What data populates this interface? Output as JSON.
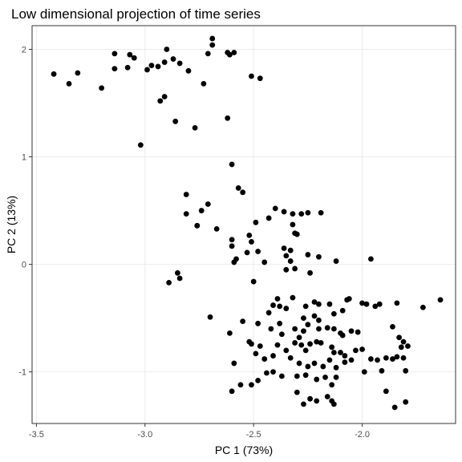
{
  "chart_data": {
    "type": "scatter",
    "title": "Low dimensional projection of time series",
    "xlabel": "PC 1 (73%)",
    "ylabel": "PC 2 (13%)",
    "xlim": [
      -3.52,
      -1.57
    ],
    "ylim": [
      -1.48,
      2.22
    ],
    "x_ticks": [
      -3.5,
      -3.0,
      -2.5,
      -2.0
    ],
    "x_tick_labels": [
      "-3.5",
      "-3.0",
      "-2.5",
      "-2.0"
    ],
    "y_ticks": [
      -1,
      0,
      1,
      2
    ],
    "y_tick_labels": [
      "-1",
      "0",
      "1",
      "2"
    ],
    "grid": true,
    "point_color": "#000000",
    "points": [
      [
        -3.42,
        1.77
      ],
      [
        -3.35,
        1.68
      ],
      [
        -3.31,
        1.78
      ],
      [
        -3.2,
        1.64
      ],
      [
        -3.14,
        1.96
      ],
      [
        -3.14,
        1.82
      ],
      [
        -3.08,
        1.83
      ],
      [
        -3.07,
        1.95
      ],
      [
        -3.05,
        1.92
      ],
      [
        -2.99,
        1.81
      ],
      [
        -2.97,
        1.85
      ],
      [
        -2.94,
        1.84
      ],
      [
        -2.91,
        1.88
      ],
      [
        -2.9,
        2.0
      ],
      [
        -2.87,
        1.91
      ],
      [
        -2.84,
        1.87
      ],
      [
        -2.8,
        1.8
      ],
      [
        -2.71,
        1.96
      ],
      [
        -2.69,
        2.1
      ],
      [
        -2.69,
        2.04
      ],
      [
        -2.62,
        1.97
      ],
      [
        -2.61,
        1.95
      ],
      [
        -2.59,
        1.97
      ],
      [
        -2.51,
        1.75
      ],
      [
        -2.47,
        1.73
      ],
      [
        -2.93,
        1.52
      ],
      [
        -2.91,
        1.56
      ],
      [
        -2.73,
        1.68
      ],
      [
        -2.62,
        1.36
      ],
      [
        -2.86,
        1.33
      ],
      [
        -2.77,
        1.27
      ],
      [
        -3.02,
        1.11
      ],
      [
        -2.6,
        0.93
      ],
      [
        -2.81,
        0.65
      ],
      [
        -2.71,
        0.56
      ],
      [
        -2.74,
        0.5
      ],
      [
        -2.57,
        0.71
      ],
      [
        -2.55,
        0.67
      ],
      [
        -2.81,
        0.47
      ],
      [
        -2.76,
        0.36
      ],
      [
        -2.76,
        0.36
      ],
      [
        -2.67,
        0.33
      ],
      [
        -2.6,
        0.23
      ],
      [
        -2.6,
        0.17
      ],
      [
        -2.58,
        0.05
      ],
      [
        -2.59,
        0.02
      ],
      [
        -2.49,
        0.39
      ],
      [
        -2.51,
        0.21
      ],
      [
        -2.52,
        0.27
      ],
      [
        -2.53,
        0.11
      ],
      [
        -2.43,
        0.43
      ],
      [
        -2.4,
        0.52
      ],
      [
        -2.36,
        0.49
      ],
      [
        -2.32,
        0.47
      ],
      [
        -2.32,
        0.37
      ],
      [
        -2.31,
        0.29
      ],
      [
        -2.3,
        0.28
      ],
      [
        -2.28,
        0.47
      ],
      [
        -2.25,
        0.48
      ],
      [
        -2.19,
        0.48
      ],
      [
        -2.36,
        0.15
      ],
      [
        -2.33,
        0.13
      ],
      [
        -2.35,
        0.08
      ],
      [
        -2.33,
        0.03
      ],
      [
        -2.25,
        0.09
      ],
      [
        -2.2,
        0.07
      ],
      [
        -2.12,
        0.03
      ],
      [
        -1.96,
        0.05
      ],
      [
        -2.48,
        0.12
      ],
      [
        -2.45,
        0.02
      ],
      [
        -2.35,
        -0.05
      ],
      [
        -2.31,
        -0.04
      ],
      [
        -2.24,
        -0.08
      ],
      [
        -2.85,
        -0.08
      ],
      [
        -2.89,
        -0.17
      ],
      [
        -2.84,
        -0.13
      ],
      [
        -2.5,
        -0.16
      ],
      [
        -2.39,
        -0.32
      ],
      [
        -2.41,
        -0.38
      ],
      [
        -2.38,
        -0.39
      ],
      [
        -2.43,
        -0.45
      ],
      [
        -2.35,
        -0.41
      ],
      [
        -2.32,
        -0.31
      ],
      [
        -2.26,
        -0.39
      ],
      [
        -2.22,
        -0.35
      ],
      [
        -2.2,
        -0.37
      ],
      [
        -2.15,
        -0.37
      ],
      [
        -2.13,
        -0.46
      ],
      [
        -2.09,
        -0.43
      ],
      [
        -2.07,
        -0.33
      ],
      [
        -2.06,
        -0.32
      ],
      [
        -2.0,
        -0.36
      ],
      [
        -1.98,
        -0.37
      ],
      [
        -1.94,
        -0.39
      ],
      [
        -1.92,
        -0.37
      ],
      [
        -1.84,
        -0.36
      ],
      [
        -1.72,
        -0.4
      ],
      [
        -1.64,
        -0.33
      ],
      [
        -2.7,
        -0.49
      ],
      [
        -2.55,
        -0.53
      ],
      [
        -2.48,
        -0.55
      ],
      [
        -2.42,
        -0.6
      ],
      [
        -2.38,
        -0.55
      ],
      [
        -2.31,
        -0.6
      ],
      [
        -2.27,
        -0.62
      ],
      [
        -2.25,
        -0.56
      ],
      [
        -2.27,
        -0.5
      ],
      [
        -2.22,
        -0.48
      ],
      [
        -2.2,
        -0.52
      ],
      [
        -2.2,
        -0.6
      ],
      [
        -2.16,
        -0.59
      ],
      [
        -2.13,
        -0.6
      ],
      [
        -2.1,
        -0.64
      ],
      [
        -2.09,
        -0.66
      ],
      [
        -2.05,
        -0.62
      ],
      [
        -2.02,
        -0.63
      ],
      [
        -2.61,
        -0.64
      ],
      [
        -2.52,
        -0.72
      ],
      [
        -2.51,
        -0.74
      ],
      [
        -2.47,
        -0.76
      ],
      [
        -2.39,
        -0.75
      ],
      [
        -2.37,
        -0.65
      ],
      [
        -2.31,
        -0.73
      ],
      [
        -2.29,
        -0.68
      ],
      [
        -2.28,
        -0.75
      ],
      [
        -2.26,
        -0.8
      ],
      [
        -2.24,
        -0.74
      ],
      [
        -2.21,
        -0.72
      ],
      [
        -2.19,
        -0.73
      ],
      [
        -2.14,
        -0.77
      ],
      [
        -2.13,
        -0.82
      ],
      [
        -2.1,
        -0.82
      ],
      [
        -2.08,
        -0.85
      ],
      [
        -2.05,
        -0.89
      ],
      [
        -2.03,
        -0.8
      ],
      [
        -2.0,
        -0.79
      ],
      [
        -1.96,
        -0.88
      ],
      [
        -1.93,
        -0.89
      ],
      [
        -1.89,
        -0.87
      ],
      [
        -1.86,
        -0.88
      ],
      [
        -1.84,
        -0.86
      ],
      [
        -1.81,
        -0.87
      ],
      [
        -1.86,
        -0.58
      ],
      [
        -1.83,
        -0.68
      ],
      [
        -1.82,
        -0.77
      ],
      [
        -1.79,
        -0.76
      ],
      [
        -1.81,
        -0.72
      ],
      [
        -2.59,
        -0.92
      ],
      [
        -2.49,
        -0.83
      ],
      [
        -2.45,
        -0.88
      ],
      [
        -2.41,
        -0.85
      ],
      [
        -2.35,
        -0.8
      ],
      [
        -2.33,
        -0.87
      ],
      [
        -2.29,
        -0.92
      ],
      [
        -2.25,
        -0.95
      ],
      [
        -2.22,
        -0.92
      ],
      [
        -2.18,
        -0.95
      ],
      [
        -2.15,
        -0.89
      ],
      [
        -2.12,
        -0.96
      ],
      [
        -2.08,
        -0.91
      ],
      [
        -1.99,
        -1.0
      ],
      [
        -1.91,
        -0.99
      ],
      [
        -1.8,
        -0.99
      ],
      [
        -2.48,
        -1.08
      ],
      [
        -2.44,
        -1.01
      ],
      [
        -2.41,
        -1.0
      ],
      [
        -2.37,
        -1.04
      ],
      [
        -2.3,
        -1.04
      ],
      [
        -2.26,
        -1.03
      ],
      [
        -2.21,
        -1.07
      ],
      [
        -2.17,
        -1.05
      ],
      [
        -2.14,
        -1.12
      ],
      [
        -2.12,
        -1.05
      ],
      [
        -2.51,
        -1.12
      ],
      [
        -2.56,
        -1.12
      ],
      [
        -2.6,
        -1.18
      ],
      [
        -2.3,
        -1.19
      ],
      [
        -2.24,
        -1.25
      ],
      [
        -2.27,
        -1.3
      ],
      [
        -2.21,
        -1.27
      ],
      [
        -2.16,
        -1.23
      ],
      [
        -2.14,
        -1.27
      ],
      [
        -2.13,
        -1.3
      ],
      [
        -1.89,
        -1.18
      ],
      [
        -1.85,
        -1.33
      ],
      [
        -1.8,
        -1.28
      ]
    ]
  }
}
